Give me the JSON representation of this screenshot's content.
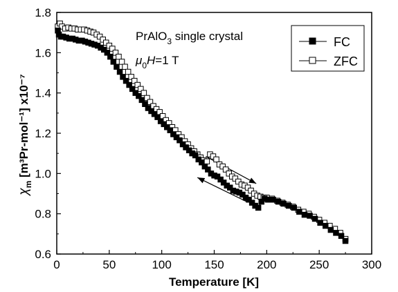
{
  "chart_data": {
    "type": "scatter",
    "xlabel": "Temperature [K]",
    "ylabel": {
      "symbol": "χ",
      "symbol_sub": "m",
      "units": "[m³Pr-mol⁻¹] x10⁻⁷"
    },
    "xlim": [
      0,
      300
    ],
    "ylim": [
      0.6,
      1.8
    ],
    "xticks": [
      0,
      50,
      100,
      150,
      200,
      250,
      300
    ],
    "yticks": [
      0.6,
      0.8,
      1.0,
      1.2,
      1.4,
      1.6,
      1.8
    ],
    "xtick_labels": [
      "0",
      "50",
      "100",
      "150",
      "200",
      "250",
      "300"
    ],
    "ytick_labels": [
      "0.6",
      "0.8",
      "1.0",
      "1.2",
      "1.4",
      "1.6",
      "1.8"
    ],
    "grid": false,
    "legend_position": "top-right",
    "annotations": {
      "sample_prefix": "PrAlO",
      "sample_sub": "3",
      "sample_suffix": " single crystal",
      "field_mu": "μ",
      "field_sub": "0",
      "field_H": "H",
      "field_rest": "=1 T"
    },
    "series": [
      {
        "name": "FC",
        "marker": "filled-square",
        "points": [
          [
            1,
            1.71
          ],
          [
            2,
            1.69
          ],
          [
            4,
            1.68
          ],
          [
            6,
            1.68
          ],
          [
            9,
            1.675
          ],
          [
            12,
            1.67
          ],
          [
            15,
            1.67
          ],
          [
            18,
            1.665
          ],
          [
            21,
            1.66
          ],
          [
            24,
            1.66
          ],
          [
            27,
            1.655
          ],
          [
            30,
            1.65
          ],
          [
            33,
            1.645
          ],
          [
            36,
            1.64
          ],
          [
            39,
            1.635
          ],
          [
            42,
            1.625
          ],
          [
            45,
            1.615
          ],
          [
            48,
            1.6
          ],
          [
            51,
            1.58
          ],
          [
            54,
            1.555
          ],
          [
            57,
            1.53
          ],
          [
            60,
            1.505
          ],
          [
            63,
            1.48
          ],
          [
            66,
            1.46
          ],
          [
            69,
            1.44
          ],
          [
            72,
            1.42
          ],
          [
            75,
            1.4
          ],
          [
            78,
            1.385
          ],
          [
            81,
            1.365
          ],
          [
            84,
            1.345
          ],
          [
            87,
            1.325
          ],
          [
            90,
            1.31
          ],
          [
            93,
            1.295
          ],
          [
            96,
            1.28
          ],
          [
            99,
            1.26
          ],
          [
            102,
            1.245
          ],
          [
            105,
            1.23
          ],
          [
            108,
            1.215
          ],
          [
            111,
            1.195
          ],
          [
            114,
            1.18
          ],
          [
            117,
            1.165
          ],
          [
            120,
            1.145
          ],
          [
            123,
            1.13
          ],
          [
            126,
            1.115
          ],
          [
            129,
            1.1
          ],
          [
            132,
            1.09
          ],
          [
            135,
            1.07
          ],
          [
            138,
            1.055
          ],
          [
            141,
            1.035
          ],
          [
            144,
            1.02
          ],
          [
            147,
            1.0
          ],
          [
            150,
            0.99
          ],
          [
            153,
            0.985
          ],
          [
            156,
            0.97
          ],
          [
            159,
            0.955
          ],
          [
            162,
            0.94
          ],
          [
            165,
            0.93
          ],
          [
            168,
            0.915
          ],
          [
            171,
            0.91
          ],
          [
            174,
            0.905
          ],
          [
            177,
            0.895
          ],
          [
            180,
            0.88
          ],
          [
            183,
            0.87
          ],
          [
            186,
            0.855
          ],
          [
            189,
            0.84
          ],
          [
            192,
            0.83
          ],
          [
            195,
            0.86
          ],
          [
            198,
            0.875
          ],
          [
            201,
            0.87
          ],
          [
            206,
            0.87
          ],
          [
            211,
            0.86
          ],
          [
            216,
            0.85
          ],
          [
            221,
            0.84
          ],
          [
            226,
            0.83
          ],
          [
            231,
            0.81
          ],
          [
            236,
            0.795
          ],
          [
            241,
            0.79
          ],
          [
            246,
            0.775
          ],
          [
            251,
            0.755
          ],
          [
            256,
            0.74
          ],
          [
            261,
            0.72
          ],
          [
            266,
            0.705
          ],
          [
            271,
            0.69
          ],
          [
            275,
            0.665
          ]
        ]
      },
      {
        "name": "ZFC",
        "marker": "open-square",
        "points": [
          [
            1,
            1.73
          ],
          [
            3,
            1.745
          ],
          [
            5,
            1.73
          ],
          [
            8,
            1.72
          ],
          [
            11,
            1.725
          ],
          [
            14,
            1.72
          ],
          [
            17,
            1.72
          ],
          [
            20,
            1.715
          ],
          [
            23,
            1.715
          ],
          [
            26,
            1.715
          ],
          [
            29,
            1.71
          ],
          [
            32,
            1.705
          ],
          [
            35,
            1.7
          ],
          [
            38,
            1.69
          ],
          [
            41,
            1.68
          ],
          [
            44,
            1.665
          ],
          [
            47,
            1.65
          ],
          [
            50,
            1.635
          ],
          [
            53,
            1.62
          ],
          [
            56,
            1.6
          ],
          [
            59,
            1.58
          ],
          [
            62,
            1.555
          ],
          [
            65,
            1.53
          ],
          [
            68,
            1.505
          ],
          [
            71,
            1.48
          ],
          [
            74,
            1.46
          ],
          [
            77,
            1.44
          ],
          [
            80,
            1.42
          ],
          [
            83,
            1.4
          ],
          [
            86,
            1.375
          ],
          [
            89,
            1.355
          ],
          [
            92,
            1.335
          ],
          [
            95,
            1.32
          ],
          [
            98,
            1.305
          ],
          [
            101,
            1.285
          ],
          [
            104,
            1.265
          ],
          [
            107,
            1.25
          ],
          [
            110,
            1.23
          ],
          [
            113,
            1.215
          ],
          [
            116,
            1.195
          ],
          [
            119,
            1.18
          ],
          [
            122,
            1.16
          ],
          [
            125,
            1.145
          ],
          [
            128,
            1.125
          ],
          [
            131,
            1.11
          ],
          [
            134,
            1.095
          ],
          [
            137,
            1.08
          ],
          [
            140,
            1.065
          ],
          [
            143,
            1.06
          ],
          [
            146,
            1.095
          ],
          [
            149,
            1.085
          ],
          [
            152,
            1.07
          ],
          [
            155,
            1.045
          ],
          [
            158,
            1.035
          ],
          [
            161,
            1.02
          ],
          [
            164,
            1.0
          ],
          [
            167,
            0.985
          ],
          [
            170,
            0.975
          ],
          [
            173,
            0.96
          ],
          [
            176,
            0.945
          ],
          [
            179,
            0.94
          ],
          [
            182,
            0.93
          ],
          [
            185,
            0.915
          ],
          [
            188,
            0.9
          ],
          [
            191,
            0.89
          ],
          [
            194,
            0.885
          ],
          [
            197,
            0.88
          ],
          [
            200,
            0.88
          ],
          [
            205,
            0.875
          ],
          [
            210,
            0.865
          ],
          [
            215,
            0.855
          ],
          [
            220,
            0.845
          ],
          [
            225,
            0.835
          ],
          [
            230,
            0.82
          ],
          [
            235,
            0.81
          ],
          [
            240,
            0.8
          ],
          [
            245,
            0.785
          ],
          [
            250,
            0.77
          ],
          [
            255,
            0.755
          ],
          [
            260,
            0.74
          ],
          [
            265,
            0.725
          ],
          [
            270,
            0.705
          ],
          [
            275,
            0.675
          ]
        ]
      }
    ],
    "arrows": [
      {
        "from": [
          142,
          1.085
        ],
        "to": [
          190,
          0.95
        ]
      },
      {
        "from": [
          181,
          0.86
        ],
        "to": [
          134,
          0.98
        ]
      }
    ]
  }
}
